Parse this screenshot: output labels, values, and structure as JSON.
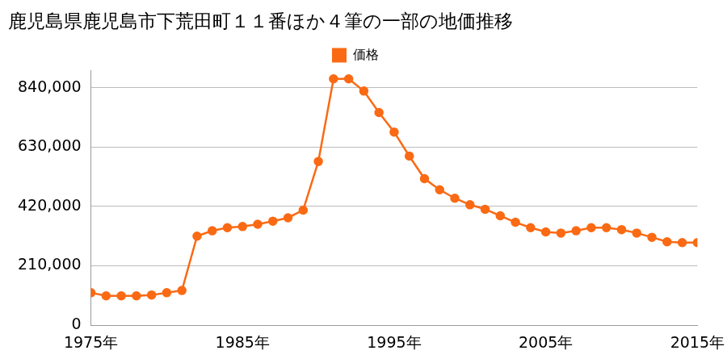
{
  "chart_data": {
    "type": "line",
    "title": "鹿児島県鹿児島市下荒田町１１番ほか４筆の一部の地価推移",
    "x": [
      1975,
      1976,
      1977,
      1978,
      1979,
      1980,
      1981,
      1982,
      1983,
      1984,
      1985,
      1986,
      1987,
      1988,
      1989,
      1990,
      1991,
      1992,
      1993,
      1994,
      1995,
      1996,
      1997,
      1998,
      1999,
      2000,
      2001,
      2002,
      2003,
      2004,
      2005,
      2006,
      2007,
      2008,
      2009,
      2010,
      2011,
      2012,
      2013,
      2014,
      2015
    ],
    "series": [
      {
        "name": "価格",
        "color": "#fa6a14",
        "marker": "circle",
        "line_style": "solid",
        "values": [
          115000,
          104000,
          104000,
          104000,
          107000,
          115000,
          123000,
          315000,
          334000,
          345000,
          349000,
          357000,
          368000,
          380000,
          407000,
          579000,
          871000,
          871000,
          828000,
          752000,
          683000,
          598000,
          518000,
          479000,
          449000,
          426000,
          410000,
          387000,
          364000,
          345000,
          330000,
          326000,
          334000,
          345000,
          345000,
          338000,
          326000,
          311000,
          295000,
          292000,
          292000
        ]
      }
    ],
    "xlim": [
      1975,
      2015
    ],
    "xticks": [
      {
        "value": 1975,
        "label": "1975年"
      },
      {
        "value": 1985,
        "label": "1985年"
      },
      {
        "value": 1995,
        "label": "1995年"
      },
      {
        "value": 2005,
        "label": "2005年"
      },
      {
        "value": 2015,
        "label": "2015年"
      }
    ],
    "ylim": [
      0,
      900000
    ],
    "yticks": [
      0,
      {
        "value": 210000,
        "label": "210,000"
      },
      {
        "value": 420000,
        "label": "420,000"
      },
      {
        "value": 630000,
        "label": "630,000"
      },
      {
        "value": 840000,
        "label": "840,000"
      }
    ],
    "grid": true,
    "legend": "top"
  }
}
